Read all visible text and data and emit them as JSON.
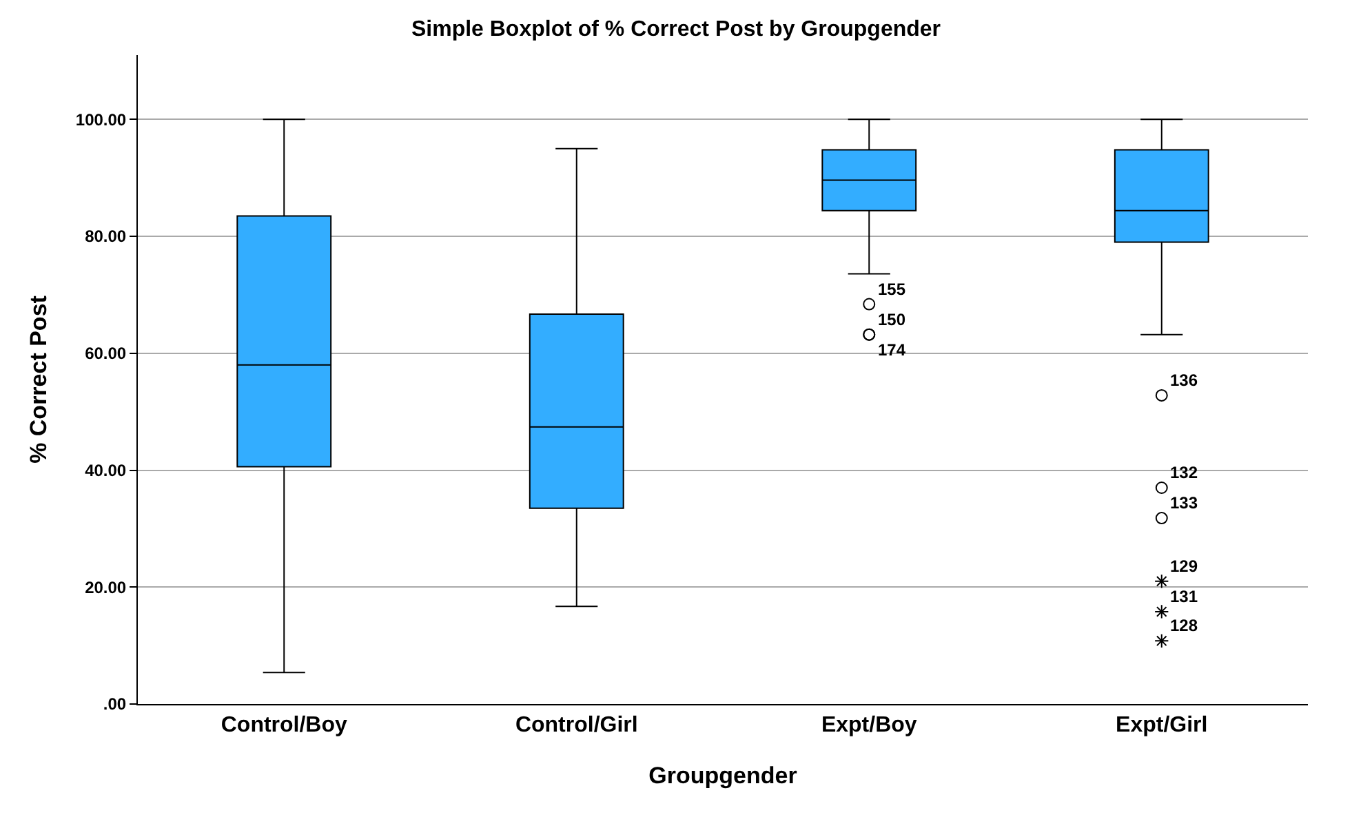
{
  "chart_data": {
    "type": "box",
    "title": "Simple Boxplot of % Correct Post by Groupgender",
    "xlabel": "Groupgender",
    "ylabel": "% Correct Post",
    "categories": [
      "Control/Boy",
      "Control/Girl",
      "Expt/Boy",
      "Expt/Girl"
    ],
    "color": "#33adff",
    "boxes": [
      {
        "low": 5.4,
        "q1": 40.6,
        "median": 58.0,
        "q3": 83.5,
        "high": 100
      },
      {
        "low": 16.7,
        "q1": 33.5,
        "median": 47.4,
        "q3": 66.7,
        "high": 95.0
      },
      {
        "low": 73.6,
        "q1": 84.4,
        "median": 89.6,
        "q3": 94.8,
        "high": 100
      },
      {
        "low": 63.2,
        "q1": 79.0,
        "median": 84.4,
        "q3": 94.8,
        "high": 100
      }
    ],
    "series": [
      {
        "type": "scatter",
        "marker": "circle",
        "color": "#000000",
        "x": [
          "Expt/Boy",
          "Expt/Boy",
          "Expt/Boy",
          "Expt/Girl",
          "Expt/Girl",
          "Expt/Girl"
        ],
        "values": [
          68.4,
          63.2,
          63.2,
          52.8,
          37.0,
          31.8
        ]
      },
      {
        "type": "scatter",
        "marker": "cross",
        "color": "#000000",
        "x": [
          "Expt/Girl",
          "Expt/Girl",
          "Expt/Girl"
        ],
        "values": [
          21.0,
          15.8,
          10.8
        ]
      }
    ],
    "annotations": [
      {
        "text": "155",
        "x": "Expt/Boy",
        "y": 68.4
      },
      {
        "text": "150",
        "x": "Expt/Boy",
        "y": 63.2
      },
      {
        "text": "174",
        "x": "Expt/Boy",
        "y": 63.2
      },
      {
        "text": "136",
        "x": "Expt/Girl",
        "y": 52.8
      },
      {
        "text": "132",
        "x": "Expt/Girl",
        "y": 37.0
      },
      {
        "text": "133",
        "x": "Expt/Girl",
        "y": 31.8
      },
      {
        "text": "129",
        "x": "Expt/Girl",
        "y": 21.0
      },
      {
        "text": "131",
        "x": "Expt/Girl",
        "y": 15.8
      },
      {
        "text": "128",
        "x": "Expt/Girl",
        "y": 10.8
      }
    ],
    "ylim": [
      0,
      111
    ],
    "yticks": [
      {
        "value": 0,
        "label": ".00"
      },
      {
        "value": 20,
        "label": "20.00"
      },
      {
        "value": 40,
        "label": "40.00"
      },
      {
        "value": 60,
        "label": "60.00"
      },
      {
        "value": 80,
        "label": "80.00"
      },
      {
        "value": 100,
        "label": "100.00"
      }
    ],
    "grid": "y"
  }
}
